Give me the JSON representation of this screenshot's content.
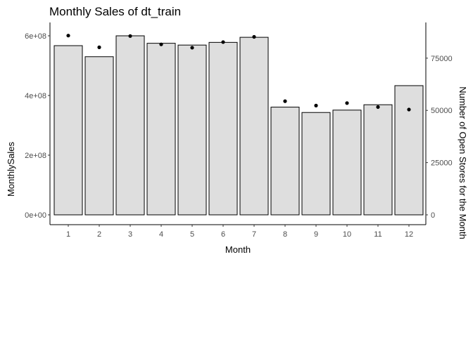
{
  "chart_data": {
    "type": "bar",
    "title": "Monthly Sales of dt_train",
    "xlabel": "Month",
    "ylabel": "MonthlySales",
    "y2label": "Number of Open Stores for the Month",
    "categories": [
      "1",
      "2",
      "3",
      "4",
      "5",
      "6",
      "7",
      "8",
      "9",
      "10",
      "11",
      "12"
    ],
    "series": [
      {
        "axis": "left",
        "kind": "bar",
        "values": [
          567000000,
          530000000,
          600000000,
          575000000,
          569000000,
          578000000,
          595000000,
          361000000,
          343000000,
          351000000,
          369000000,
          433000000
        ]
      },
      {
        "axis": "right",
        "kind": "point",
        "values": [
          85800,
          80200,
          85600,
          81600,
          80000,
          82700,
          85200,
          54400,
          52300,
          53500,
          51600,
          50400
        ]
      }
    ],
    "ylim": [
      0,
      600000000
    ],
    "y_ticks": [
      0,
      200000000,
      400000000,
      600000000
    ],
    "y_tick_labels": [
      "0e+00",
      "2e+08",
      "4e+08",
      "6e+08"
    ],
    "y2lim": [
      0,
      85700
    ],
    "y2_ticks": [
      0,
      25000,
      50000,
      75000
    ],
    "y2_tick_labels": [
      "0",
      "25000",
      "50000",
      "75000"
    ],
    "grid": false,
    "legend": "none",
    "colors": {
      "bar_fill": "#dedede",
      "bar_stroke": "#000000",
      "point": "#000000"
    }
  }
}
